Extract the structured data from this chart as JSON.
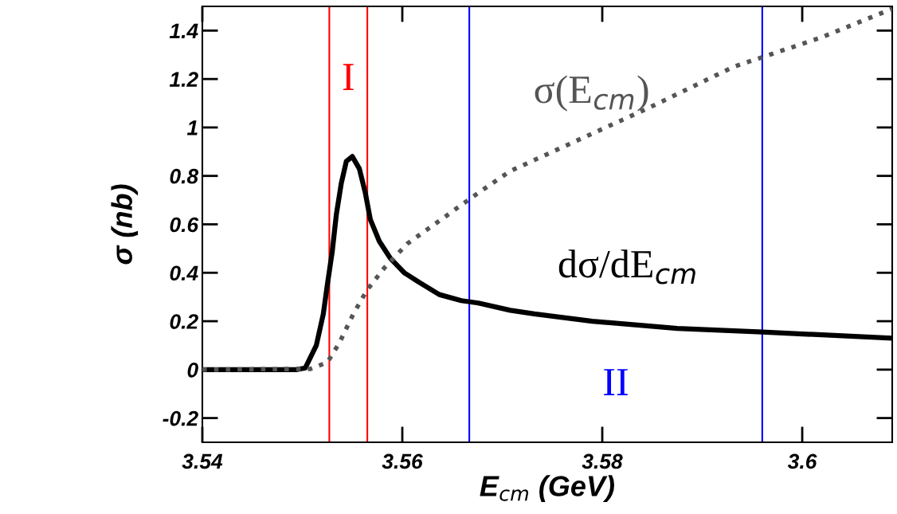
{
  "chart_data": {
    "type": "line",
    "xlabel": "E$_{cm}$ (GeV)",
    "ylabel": "σ (nb)",
    "xlim": [
      3.54,
      3.609
    ],
    "xticks": [
      3.54,
      3.56,
      3.58,
      {
        "value": 3.6,
        "label": "3.6"
      }
    ],
    "ylim": [
      -0.3,
      1.5
    ],
    "yticks": [
      -0.2,
      {
        "value": 0,
        "label": "0"
      },
      0.2,
      0.4,
      0.6,
      0.8,
      {
        "value": 1,
        "label": "1"
      },
      1.2,
      1.4
    ],
    "grid": false,
    "legend": false,
    "marker": "none",
    "series": [
      {
        "name": "dσ/dE$_{cm}$",
        "color": "#000000",
        "line_style": "solid",
        "x": [
          3.54,
          3.5494,
          3.5503,
          3.5514,
          3.5521,
          3.5525,
          3.553,
          3.5534,
          3.5539,
          3.5544,
          3.555,
          3.5557,
          3.5563,
          3.5568,
          3.5577,
          3.5588,
          3.5602,
          3.5617,
          3.5637,
          3.5659,
          3.5676,
          3.5708,
          3.5732,
          3.579,
          3.5875,
          3.596,
          3.609
        ],
        "values": [
          0,
          0,
          0.007,
          0.1,
          0.23,
          0.35,
          0.49,
          0.64,
          0.77,
          0.86,
          0.88,
          0.83,
          0.73,
          0.62,
          0.53,
          0.46,
          0.4,
          0.36,
          0.31,
          0.285,
          0.275,
          0.245,
          0.23,
          0.2,
          0.17,
          0.155,
          0.13
        ]
      },
      {
        "name": "σ(E$_{cm}$)",
        "color": "#555555",
        "line_style": "dotted",
        "x": [
          3.54,
          3.5508,
          3.5525,
          3.5537,
          3.5551,
          3.5565,
          3.5582,
          3.5605,
          3.5639,
          3.5676,
          3.5708,
          3.5761,
          3.5846,
          3.5931,
          3.6018,
          3.609
        ],
        "values": [
          0,
          0.003,
          0.03,
          0.11,
          0.23,
          0.33,
          0.42,
          0.52,
          0.62,
          0.73,
          0.82,
          0.92,
          1.08,
          1.25,
          1.37,
          1.49
        ]
      }
    ],
    "ref_lines": [
      {
        "axis": "x",
        "value": 3.5527,
        "color": "#ff0000"
      },
      {
        "axis": "x",
        "value": 3.5565,
        "color": "#ff0000"
      },
      {
        "axis": "x",
        "value": 3.5667,
        "color": "#0000ff"
      },
      {
        "axis": "x",
        "value": 3.596,
        "color": "#0000ff"
      }
    ],
    "annotations": [
      "I",
      "II"
    ]
  }
}
